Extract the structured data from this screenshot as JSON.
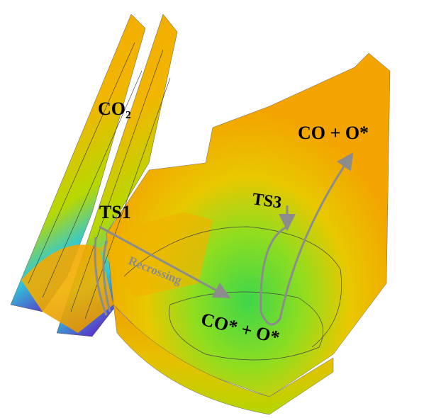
{
  "labels": {
    "co2": "CO₂",
    "ts1": "TS1",
    "recrossing": "Recrossing",
    "ts3": "TS3",
    "product": "CO + O*",
    "adsorbed": "CO* + O*"
  }
}
